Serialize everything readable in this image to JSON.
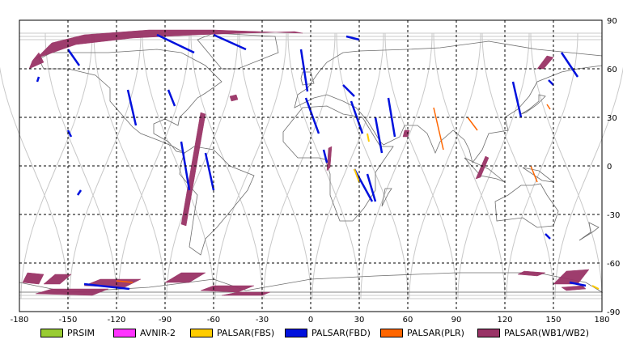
{
  "map": {
    "x_axis": {
      "range": [
        -180,
        180
      ],
      "ticks": [
        "-180",
        "-150",
        "-120",
        "-90",
        "-60",
        "-30",
        "0",
        "30",
        "60",
        "90",
        "120",
        "150",
        "180"
      ]
    },
    "y_axis": {
      "range": [
        -90,
        90
      ],
      "ticks": [
        "90",
        "60",
        "30",
        "0",
        "-30",
        "-60",
        "-90"
      ]
    },
    "grid": "dashed",
    "colors": {
      "frame": "#000000",
      "coast": "#6e6e6e",
      "orbit_tracks": "#c8c8c8",
      "PRSIM": "#99cc33",
      "AVNIR-2": "#ff33ff",
      "PALSAR(FBS)": "#ffcc00",
      "PALSAR(FBD)": "#0011dd",
      "PALSAR(PLR)": "#ff6600",
      "PALSAR(WB1/WB2)": "#993366"
    }
  },
  "legend": [
    {
      "label": "PRSIM",
      "color": "#99cc33"
    },
    {
      "label": "AVNIR-2",
      "color": "#ff33ff"
    },
    {
      "label": "PALSAR(FBS)",
      "color": "#ffcc00"
    },
    {
      "label": "PALSAR(FBD)",
      "color": "#0011dd"
    },
    {
      "label": "PALSAR(PLR)",
      "color": "#ff6600"
    },
    {
      "label": "PALSAR(WB1/WB2)",
      "color": "#993366"
    }
  ]
}
